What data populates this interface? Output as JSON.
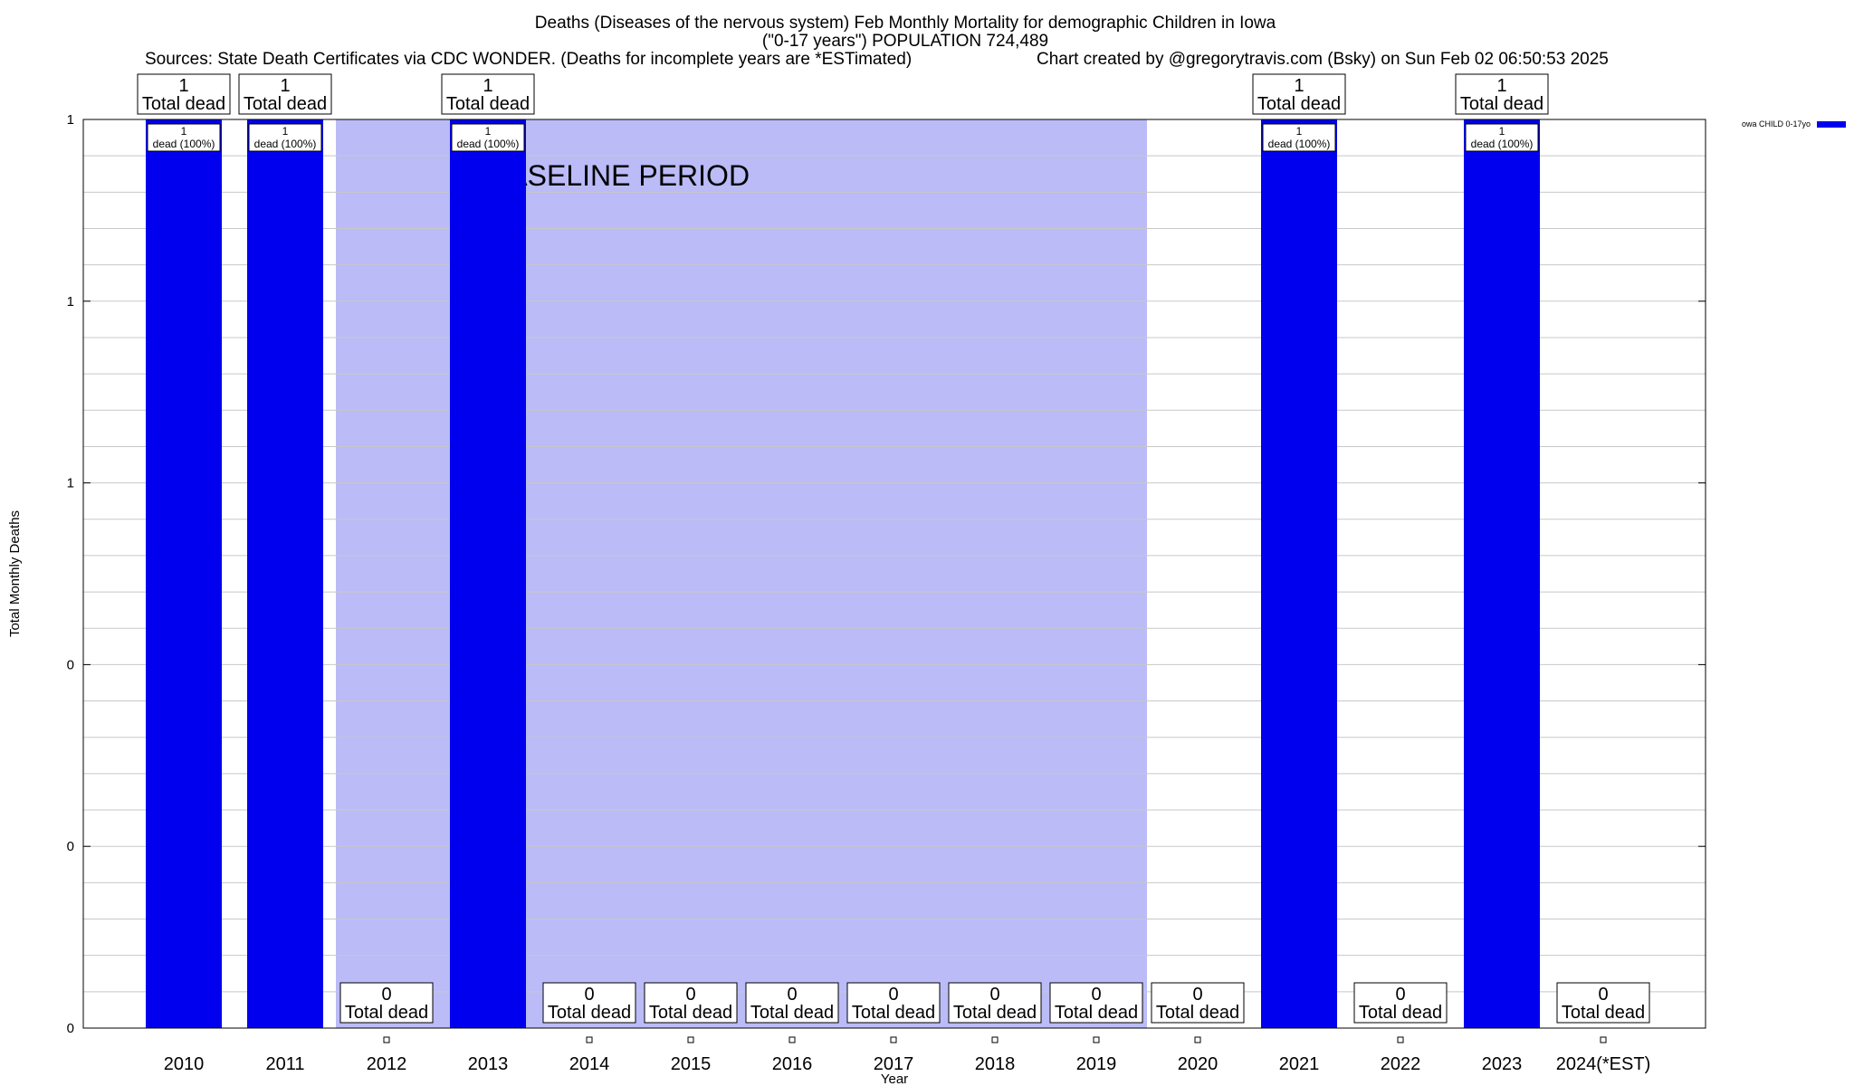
{
  "chart_data": {
    "type": "bar",
    "title_lines": [
      "Deaths (Diseases of the nervous system) Feb Monthly Mortality for demographic Children in Iowa",
      "(\"0-17 years\") POPULATION 724,489"
    ],
    "subtitle_left": "Sources: State Death Certificates via CDC WONDER. (Deaths for incomplete years are *ESTimated)",
    "subtitle_right": "Chart created by @gregorytravis.com (Bsky) on Sun Feb 02 06:50:53 2025",
    "xlabel": "Year",
    "ylabel": "Total Monthly Deaths",
    "ylim": [
      0,
      1
    ],
    "y_tick_labels": [
      "0",
      "0",
      "0",
      "1",
      "1",
      "1"
    ],
    "categories": [
      "2010",
      "2011",
      "2012",
      "2013",
      "2014",
      "2015",
      "2016",
      "2017",
      "2018",
      "2019",
      "2020",
      "2021",
      "2022",
      "2023",
      "2024(*EST)"
    ],
    "series": [
      {
        "name": "owa CHILD 0-17yo",
        "color": "#0000ee",
        "values": [
          1,
          1,
          0,
          1,
          0,
          0,
          0,
          0,
          0,
          0,
          0,
          1,
          0,
          1,
          0
        ]
      }
    ],
    "top_labels": [
      {
        "count": "1",
        "text": "Total dead"
      },
      {
        "count": "1",
        "text": "Total dead"
      },
      {
        "count": "0",
        "text": "Total dead"
      },
      {
        "count": "1",
        "text": "Total dead"
      },
      {
        "count": "0",
        "text": "Total dead"
      },
      {
        "count": "0",
        "text": "Total dead"
      },
      {
        "count": "0",
        "text": "Total dead"
      },
      {
        "count": "0",
        "text": "Total dead"
      },
      {
        "count": "0",
        "text": "Total dead"
      },
      {
        "count": "0",
        "text": "Total dead"
      },
      {
        "count": "0",
        "text": "Total dead"
      },
      {
        "count": "1",
        "text": "Total dead"
      },
      {
        "count": "0",
        "text": "Total dead"
      },
      {
        "count": "1",
        "text": "Total dead"
      },
      {
        "count": "0",
        "text": "Total dead"
      }
    ],
    "inbar_labels": [
      {
        "count": "1",
        "text": "dead (100%)"
      },
      {
        "count": "1",
        "text": "dead (100%)"
      },
      {
        "count": "",
        "text": ""
      },
      {
        "count": "1",
        "text": "dead (100%)"
      },
      {
        "count": "",
        "text": ""
      },
      {
        "count": "",
        "text": ""
      },
      {
        "count": "",
        "text": ""
      },
      {
        "count": "",
        "text": ""
      },
      {
        "count": "",
        "text": ""
      },
      {
        "count": "",
        "text": ""
      },
      {
        "count": "",
        "text": ""
      },
      {
        "count": "1",
        "text": "dead (100%)"
      },
      {
        "count": "",
        "text": ""
      },
      {
        "count": "1",
        "text": "dead (100%)"
      },
      {
        "count": "",
        "text": ""
      }
    ],
    "baseline_band": {
      "label": "BASELINE PERIOD",
      "from": "2012",
      "to": "2019",
      "color": "#bbbbf8"
    },
    "grid": true,
    "legend": "top-right"
  }
}
